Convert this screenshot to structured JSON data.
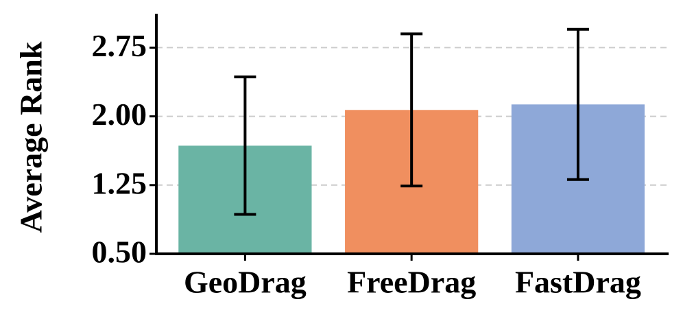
{
  "chart_data": {
    "type": "bar",
    "y_label": "Average Rank",
    "categories": [
      "GeoDrag",
      "FreeDrag",
      "FastDrag"
    ],
    "values": [
      1.68,
      2.07,
      2.13
    ],
    "errors": [
      0.75,
      0.83,
      0.82
    ],
    "colors": [
      "#6ab4a4",
      "#f08f5f",
      "#8ea8d8"
    ],
    "ylim": [
      0.5,
      3.12
    ],
    "yticks": [
      {
        "value": 0.5,
        "label": "0.50"
      },
      1.25,
      {
        "value": 2.0,
        "label": "2.00"
      },
      2.75
    ],
    "grid": true
  }
}
